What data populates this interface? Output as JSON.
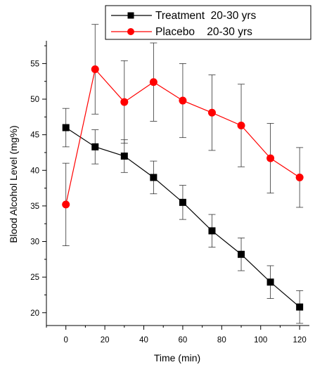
{
  "chart_data": {
    "type": "line",
    "title": "",
    "xlabel": "Time (min)",
    "ylabel": "Blood Alcohol Level (mg%)",
    "xlim": [
      -10,
      125
    ],
    "ylim": [
      18.2,
      58.2
    ],
    "xticks": [
      0,
      20,
      40,
      60,
      80,
      100,
      120
    ],
    "yticks": [
      20,
      25,
      30,
      35,
      40,
      45,
      50,
      55
    ],
    "grid": false,
    "legend_position": "top-right",
    "x": [
      0,
      15,
      30,
      45,
      60,
      75,
      90,
      105,
      120
    ],
    "series": [
      {
        "name": "Treatment  20-30 yrs",
        "color": "#000000",
        "marker": "square",
        "values": [
          46.0,
          43.3,
          42.0,
          39.0,
          35.5,
          31.5,
          28.2,
          24.3,
          20.8
        ],
        "errors": [
          2.7,
          2.4,
          2.3,
          2.3,
          2.4,
          2.3,
          2.3,
          2.3,
          2.3
        ]
      },
      {
        "name": "Placebo    20-30 yrs",
        "color": "#ff0000",
        "marker": "circle",
        "values": [
          35.2,
          54.2,
          49.6,
          52.4,
          49.8,
          48.1,
          46.3,
          41.7,
          39.0
        ],
        "errors": [
          5.8,
          6.3,
          5.8,
          5.5,
          5.2,
          5.3,
          5.8,
          4.9,
          4.2
        ]
      }
    ]
  }
}
